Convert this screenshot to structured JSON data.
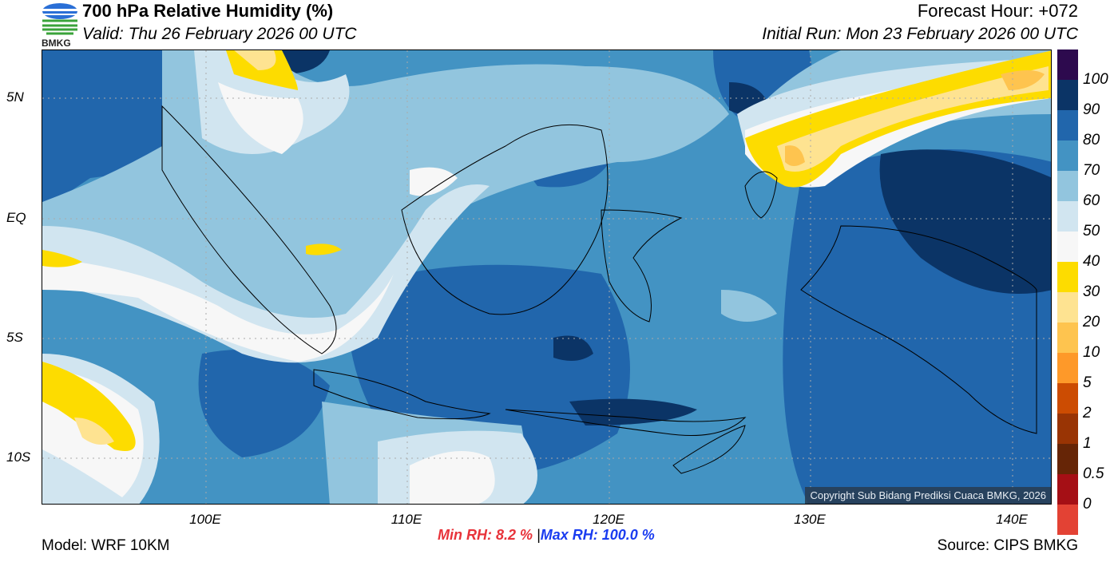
{
  "header": {
    "title": "700 hPa Relative Humidity (%)",
    "valid": "Valid: Thu 26 February 2026 00 UTC",
    "forecast_hour": "Forecast Hour: +072",
    "initial_run": "Initial Run: Mon 23 February 2026 00 UTC",
    "logo_text": "BMKG"
  },
  "map": {
    "lat_ticks": [
      "5N",
      "EQ",
      "5S",
      "10S"
    ],
    "lon_ticks": [
      "100E",
      "110E",
      "120E",
      "130E",
      "140E"
    ],
    "copyright": "Copyright Sub Bidang Prediksi Cuaca BMKG, 2026"
  },
  "colorbar": {
    "labels": [
      "100",
      "90",
      "80",
      "70",
      "60",
      "50",
      "40",
      "30",
      "20",
      "10",
      "5",
      "2",
      "1",
      "0.5",
      "0"
    ],
    "colors": [
      "#2d0a4e",
      "#0b3466",
      "#2166ac",
      "#4393c3",
      "#92c5de",
      "#d1e5f0",
      "#f7f7f7",
      "#fddc00",
      "#fee391",
      "#fec44f",
      "#fe9929",
      "#cc4c02",
      "#993404",
      "#662506",
      "#a50f15",
      "#e34234"
    ]
  },
  "footer": {
    "model": "Model: WRF 10KM",
    "min_rh": "Min RH:   8.2 %",
    "separator": "|",
    "max_rh": "Max RH: 100.0 %",
    "source": "Source: CIPS BMKG"
  }
}
